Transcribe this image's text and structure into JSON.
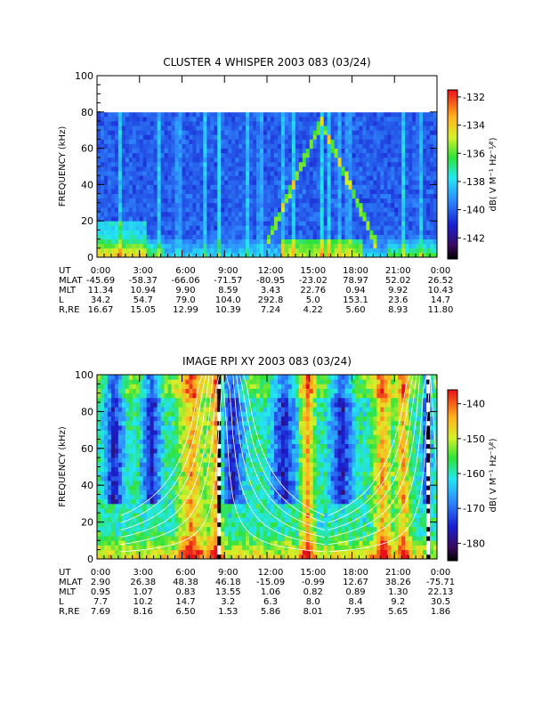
{
  "chart_data": [
    {
      "type": "heatmap",
      "title": "CLUSTER 4 WHISPER 2003 083 (03/24)",
      "ylabel": "FREQUENCY (kHz)",
      "ylim": [
        0,
        100
      ],
      "yticks": [
        "0",
        "20",
        "40",
        "60",
        "80",
        "100"
      ],
      "xticks": [
        "0:00",
        "3:00",
        "6:00",
        "9:00",
        "12:00",
        "15:00",
        "18:00",
        "21:00",
        "0:00"
      ],
      "colorbar": {
        "label": "dB( V M⁻¹ Hz⁻¹⁄²)",
        "ticks": [
          "-132",
          "-134",
          "-136",
          "-138",
          "-140",
          "-142"
        ],
        "range": [
          -143.5,
          -131.5
        ]
      },
      "ephemeris": [
        {
          "name": "UT",
          "values": [
            "0:00",
            "3:00",
            "6:00",
            "9:00",
            "12:00",
            "15:00",
            "18:00",
            "21:00",
            "0:00"
          ]
        },
        {
          "name": "MLAT",
          "values": [
            "-45.69",
            "-58.37",
            "-66.06",
            "-71.57",
            "-80.95",
            "-23.02",
            "78.97",
            "52.02",
            "26.52"
          ]
        },
        {
          "name": "MLT",
          "values": [
            "11.34",
            "10.94",
            "9.90",
            "8.59",
            "3.43",
            "22.76",
            "0.94",
            "9.92",
            "10.43"
          ]
        },
        {
          "name": "L",
          "values": [
            "34.2",
            "54.7",
            "79.0",
            "104.0",
            "292.8",
            "5.0",
            "153.1",
            "23.6",
            "14.7"
          ]
        },
        {
          "name": "R,RE",
          "values": [
            "16.67",
            "15.05",
            "12.99",
            "10.39",
            "7.24",
            "4.22",
            "5.60",
            "8.93",
            "11.80"
          ]
        }
      ]
    },
    {
      "type": "heatmap",
      "title": "IMAGE RPI XY 2003 083 (03/24)",
      "ylabel": "FREQUENCY (kHz)",
      "ylim": [
        0,
        100
      ],
      "yticks": [
        "0",
        "20",
        "40",
        "60",
        "80",
        "100"
      ],
      "xticks": [
        "0:00",
        "3:00",
        "6:00",
        "9:00",
        "12:00",
        "15:00",
        "18:00",
        "21:00",
        "0:00"
      ],
      "colorbar": {
        "label": "dB( V M⁻¹ Hz⁻¹⁄²)",
        "ticks": [
          "-140",
          "-150",
          "-160",
          "-170",
          "-180"
        ],
        "range": [
          -185,
          -136
        ]
      },
      "ephemeris": [
        {
          "name": "UT",
          "values": [
            "0:00",
            "3:00",
            "6:00",
            "9:00",
            "12:00",
            "15:00",
            "18:00",
            "21:00",
            "0:00"
          ]
        },
        {
          "name": "MLAT",
          "values": [
            "2.90",
            "26.38",
            "48.38",
            "46.18",
            "-15.09",
            "-0.99",
            "12.67",
            "38.26",
            "-75.71"
          ]
        },
        {
          "name": "MLT",
          "values": [
            "0.95",
            "1.07",
            "0.83",
            "13.55",
            "1.06",
            "0.82",
            "0.89",
            "1.30",
            "22.13"
          ]
        },
        {
          "name": "L",
          "values": [
            "7.7",
            "10.2",
            "14.7",
            "3.2",
            "6.3",
            "8.0",
            "8.4",
            "9.2",
            "30.5"
          ]
        },
        {
          "name": "R,RE",
          "values": [
            "7.69",
            "8.16",
            "6.50",
            "1.53",
            "5.86",
            "8.01",
            "7.95",
            "5.65",
            "1.86"
          ]
        }
      ]
    }
  ]
}
